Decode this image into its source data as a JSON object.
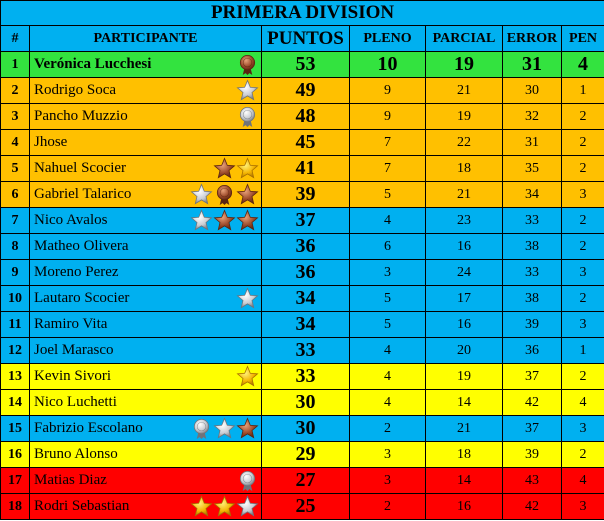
{
  "title": "PRIMERA DIVISION",
  "headers": {
    "rank": "#",
    "participant": "PARTICIPANTE",
    "points": "PUNTOS",
    "pleno": "PLENO",
    "parcial": "PARCIAL",
    "error": "ERROR",
    "pen": "PEN"
  },
  "colors": {
    "green": "#33e33f",
    "orange": "#ffc000",
    "blue": "#00b0f0",
    "yellow": "#ffff00",
    "red": "#ff0000"
  },
  "rows": [
    {
      "rank": "1",
      "name": "Verónica Lucchesi",
      "points": "53",
      "pleno": "10",
      "parcial": "19",
      "error": "31",
      "pen": "4",
      "color": "green",
      "icons": [
        "bronze-medal-icon"
      ]
    },
    {
      "rank": "2",
      "name": "Rodrigo Soca",
      "points": "49",
      "pleno": "9",
      "parcial": "21",
      "error": "30",
      "pen": "1",
      "color": "orange",
      "icons": [
        "silver-star-icon"
      ]
    },
    {
      "rank": "3",
      "name": "Pancho Muzzio",
      "points": "48",
      "pleno": "9",
      "parcial": "19",
      "error": "32",
      "pen": "2",
      "color": "orange",
      "icons": [
        "silver-medal-icon"
      ]
    },
    {
      "rank": "4",
      "name": "Jhose",
      "points": "45",
      "pleno": "7",
      "parcial": "22",
      "error": "31",
      "pen": "2",
      "color": "orange",
      "icons": []
    },
    {
      "rank": "5",
      "name": "Nahuel Scocier",
      "points": "41",
      "pleno": "7",
      "parcial": "18",
      "error": "35",
      "pen": "2",
      "color": "orange",
      "icons": [
        "bronze-star-icon",
        "gold-star-icon"
      ]
    },
    {
      "rank": "6",
      "name": "Gabriel Talarico",
      "points": "39",
      "pleno": "5",
      "parcial": "21",
      "error": "34",
      "pen": "3",
      "color": "orange",
      "icons": [
        "silver-star-icon",
        "bronze-medal-icon",
        "bronze-star-icon"
      ]
    },
    {
      "rank": "7",
      "name": "Nico Avalos",
      "points": "37",
      "pleno": "4",
      "parcial": "23",
      "error": "33",
      "pen": "2",
      "color": "blue",
      "icons": [
        "silver-star-icon",
        "bronze-star-icon",
        "bronze-star-icon"
      ]
    },
    {
      "rank": "8",
      "name": "Matheo Olivera",
      "points": "36",
      "pleno": "6",
      "parcial": "16",
      "error": "38",
      "pen": "2",
      "color": "blue",
      "icons": []
    },
    {
      "rank": "9",
      "name": "Moreno Perez",
      "points": "36",
      "pleno": "3",
      "parcial": "24",
      "error": "33",
      "pen": "3",
      "color": "blue",
      "icons": []
    },
    {
      "rank": "10",
      "name": "Lautaro Scocier",
      "points": "34",
      "pleno": "5",
      "parcial": "17",
      "error": "38",
      "pen": "2",
      "color": "blue",
      "icons": [
        "silver-star-icon"
      ]
    },
    {
      "rank": "11",
      "name": "Ramiro Vita",
      "points": "34",
      "pleno": "5",
      "parcial": "16",
      "error": "39",
      "pen": "3",
      "color": "blue",
      "icons": []
    },
    {
      "rank": "12",
      "name": "Joel Marasco",
      "points": "33",
      "pleno": "4",
      "parcial": "20",
      "error": "36",
      "pen": "1",
      "color": "blue",
      "icons": []
    },
    {
      "rank": "13",
      "name": "Kevin Sivori",
      "points": "33",
      "pleno": "4",
      "parcial": "19",
      "error": "37",
      "pen": "2",
      "color": "yellow",
      "icons": [
        "gold-star-icon"
      ]
    },
    {
      "rank": "14",
      "name": "Nico Luchetti",
      "points": "30",
      "pleno": "4",
      "parcial": "14",
      "error": "42",
      "pen": "4",
      "color": "yellow",
      "icons": []
    },
    {
      "rank": "15",
      "name": "Fabrizio Escolano",
      "points": "30",
      "pleno": "2",
      "parcial": "21",
      "error": "37",
      "pen": "3",
      "color": "blue",
      "icons": [
        "silver-medal-icon",
        "silver-star-icon",
        "bronze-star-icon"
      ]
    },
    {
      "rank": "16",
      "name": "Bruno Alonso",
      "points": "29",
      "pleno": "3",
      "parcial": "18",
      "error": "39",
      "pen": "2",
      "color": "yellow",
      "icons": []
    },
    {
      "rank": "17",
      "name": "Matias Diaz",
      "points": "27",
      "pleno": "3",
      "parcial": "14",
      "error": "43",
      "pen": "4",
      "color": "red",
      "icons": [
        "silver-medal-icon"
      ]
    },
    {
      "rank": "18",
      "name": "Rodri Sebastian",
      "points": "25",
      "pleno": "2",
      "parcial": "16",
      "error": "42",
      "pen": "3",
      "color": "red",
      "icons": [
        "gold-star-icon",
        "gold-star-icon",
        "silver-star-icon"
      ]
    }
  ]
}
